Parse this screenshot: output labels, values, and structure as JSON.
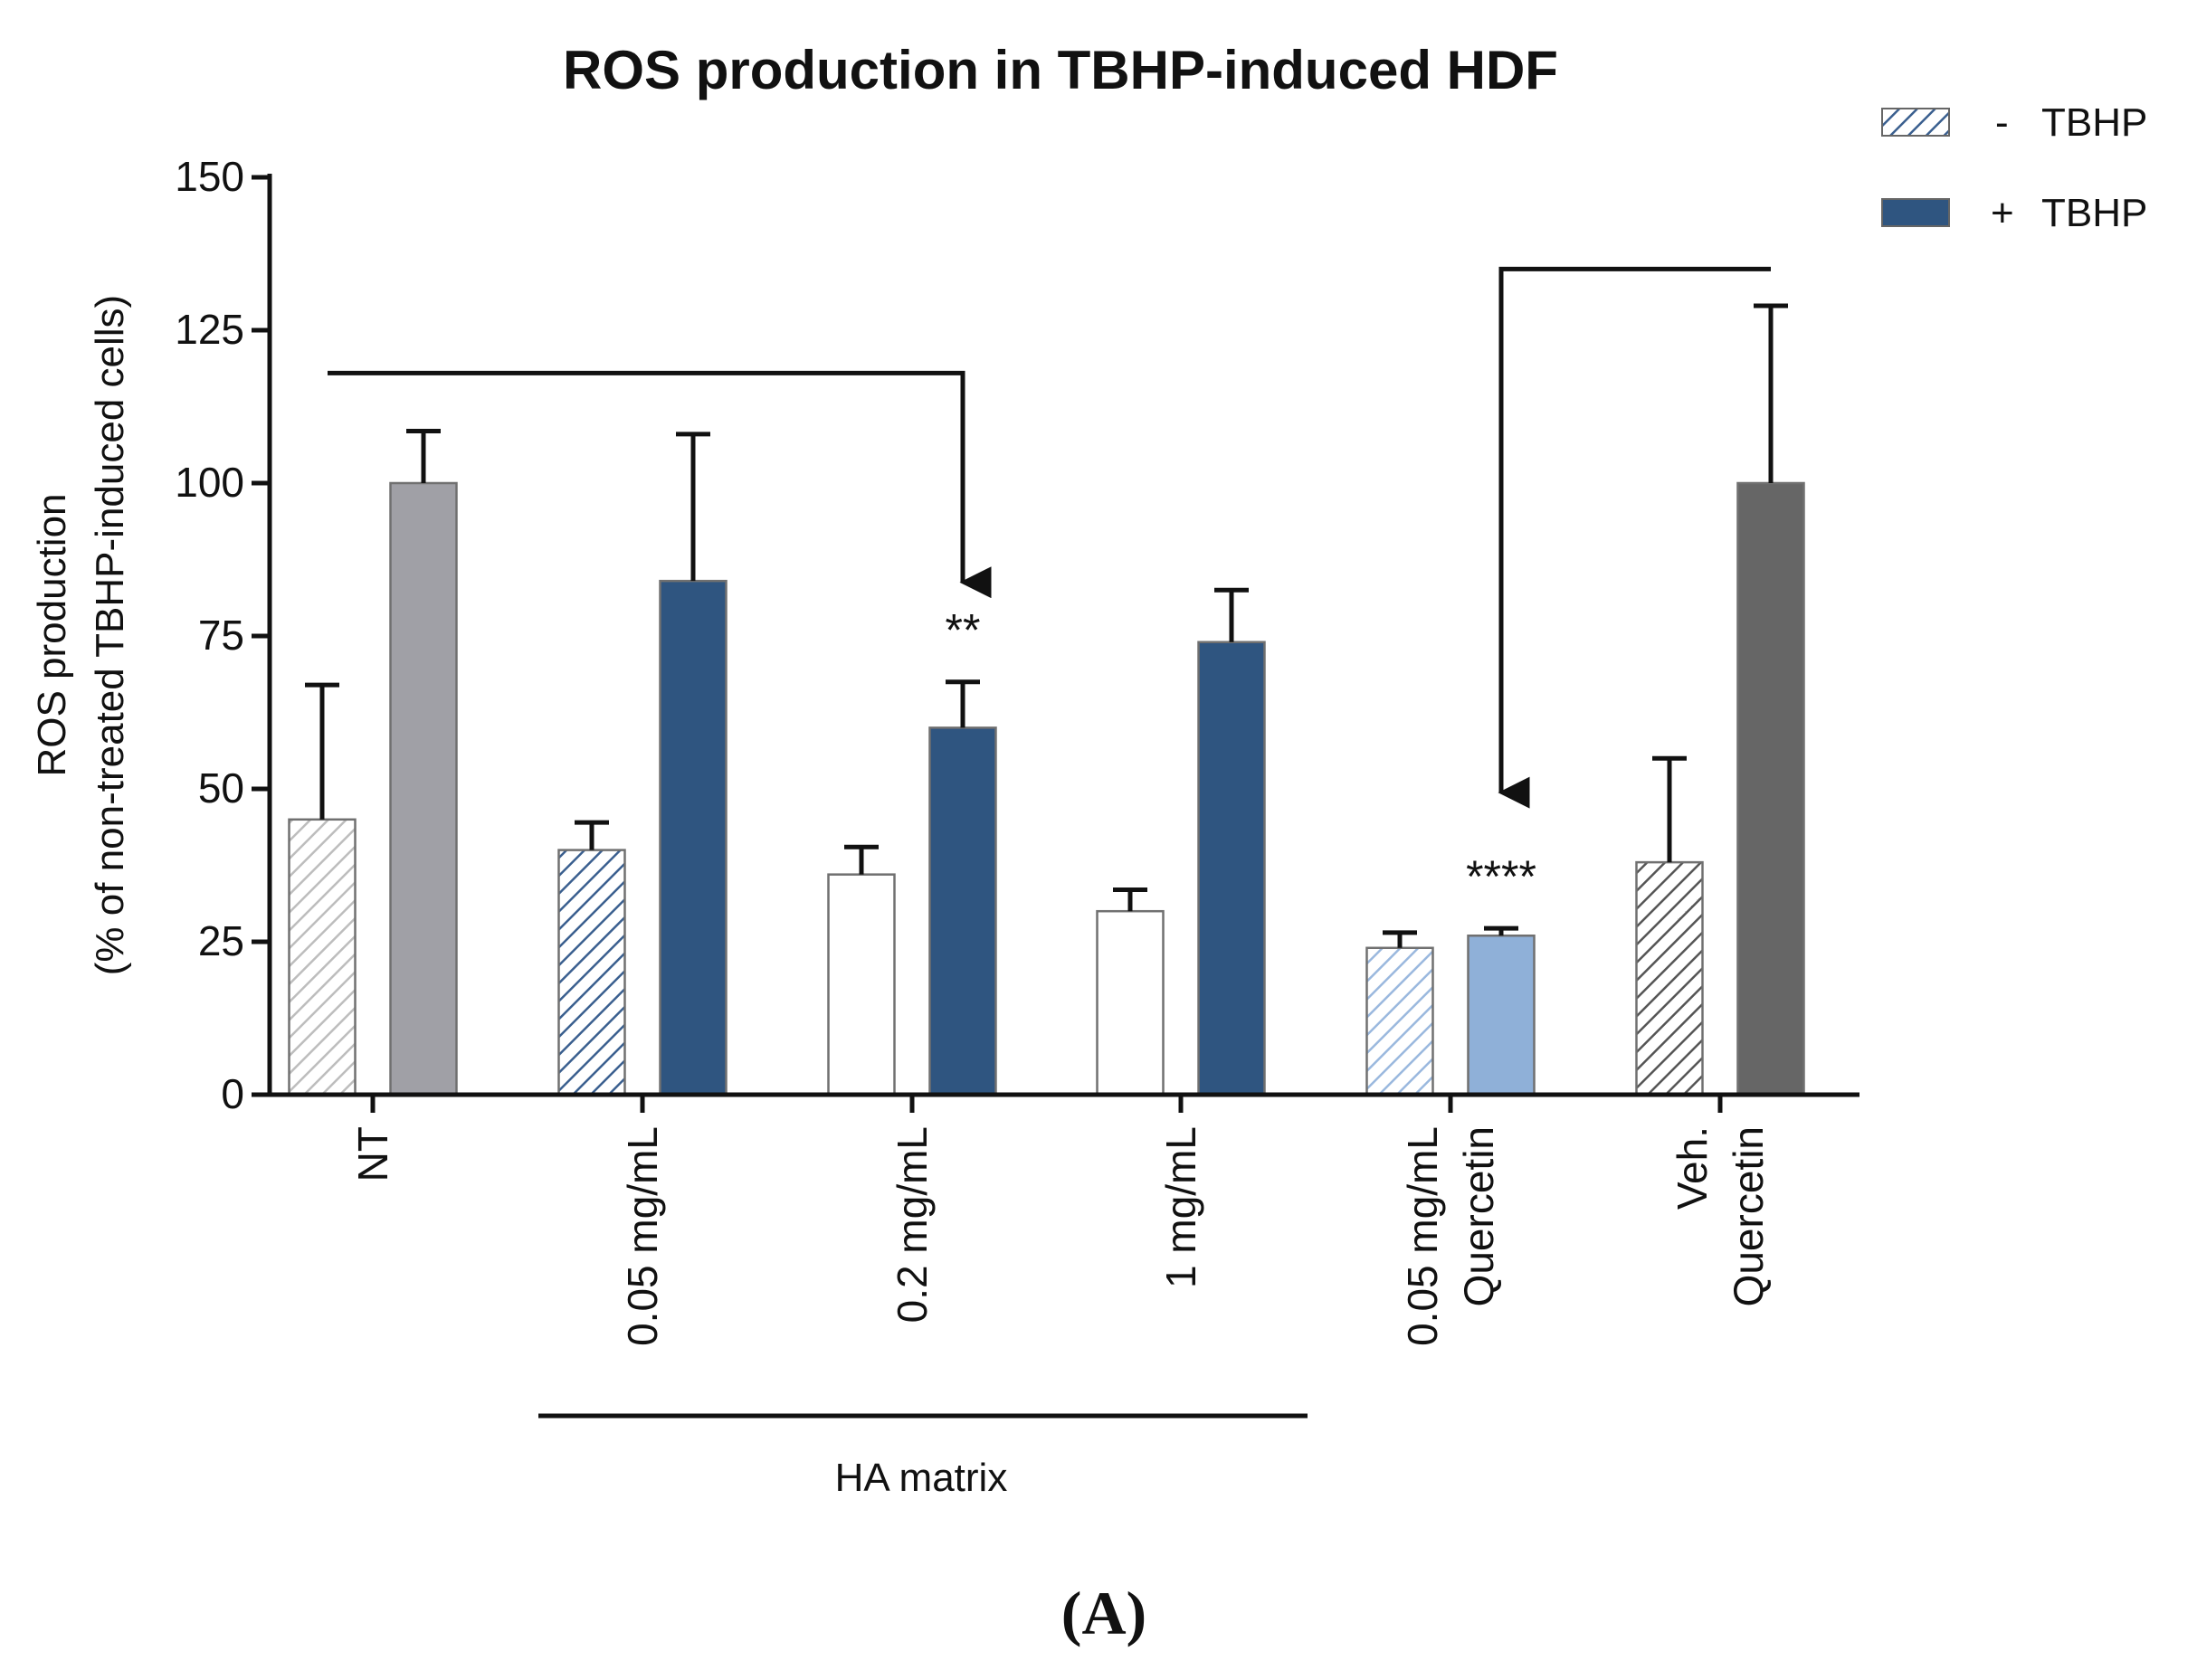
{
  "chart_data": {
    "type": "bar",
    "title": "ROS production in TBHP-induced HDF",
    "ylabel_line1": "ROS production",
    "ylabel_line2": "(% of non-treated TBHP-induced cells)",
    "xlabel": "",
    "ylim": [
      0,
      150
    ],
    "yticks": [
      0,
      25,
      50,
      75,
      100,
      125,
      150
    ],
    "categories": [
      {
        "lines": [
          "NT"
        ]
      },
      {
        "lines": [
          "0.05 mg/mL"
        ]
      },
      {
        "lines": [
          "0.2 mg/mL"
        ]
      },
      {
        "lines": [
          "1 mg/mL"
        ]
      },
      {
        "lines": [
          "0.05 mg/mL",
          "Quercetin"
        ]
      },
      {
        "lines": [
          "Veh.",
          "Quercetin"
        ]
      }
    ],
    "series": [
      {
        "name": "- TBHP",
        "pattern": "hatched",
        "values": [
          45,
          40,
          36,
          30,
          24,
          38
        ],
        "errors": [
          22,
          4.5,
          4.5,
          3.5,
          2.5,
          17
        ],
        "colors": [
          "#bdbdbd",
          "#3a5f8f",
          "#3a5f8f",
          "#3a5f8f",
          "#9ab8de",
          "#555555"
        ]
      },
      {
        "name": "+ TBHP",
        "pattern": "solid",
        "values": [
          100,
          84,
          60,
          74,
          26,
          100
        ],
        "errors": [
          8.5,
          24,
          7.5,
          8.5,
          1.2,
          29
        ],
        "colors": [
          "#a0a0a6",
          "#2f5580",
          "#2f5580",
          "#2f5580",
          "#8fb0d8",
          "#666666"
        ]
      }
    ],
    "legend": {
      "position": "top-right",
      "items": [
        {
          "sign": "-",
          "label": "TBHP",
          "pattern": "hatched",
          "color": "#3a5f8f"
        },
        {
          "sign": "+",
          "label": "TBHP",
          "pattern": "solid",
          "color": "#2f5580"
        }
      ]
    },
    "annotations": [
      {
        "text": "**",
        "category": 2,
        "series": 1
      },
      {
        "text": "****",
        "category": 4,
        "series": 1
      }
    ],
    "comparisons": [
      {
        "from_category": 0,
        "to_category": 2,
        "level": 118,
        "arrow_to": 2
      },
      {
        "from_category": 5,
        "to_category": 4,
        "level": 135,
        "arrow_to": 4
      }
    ],
    "group_bracket": {
      "label": "HA matrix",
      "categories": [
        1,
        3
      ]
    },
    "panel_label": "(A)"
  }
}
